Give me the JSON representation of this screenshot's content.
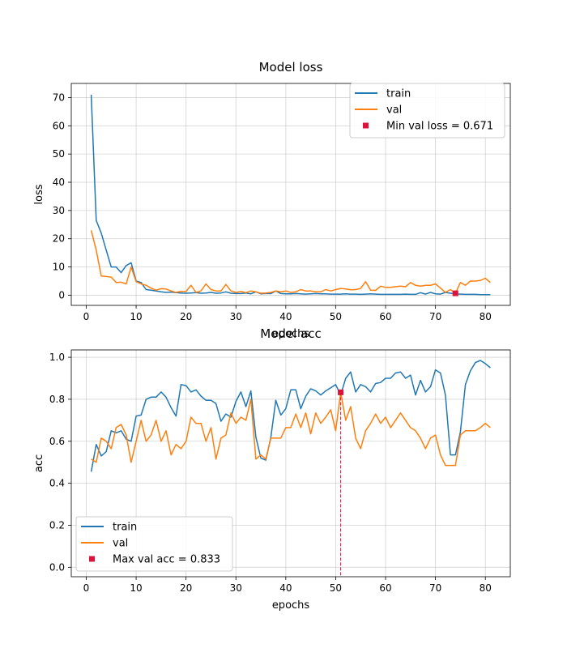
{
  "chart_data": [
    {
      "type": "line",
      "title": "Model loss",
      "xlabel": "epochs",
      "ylabel": "loss",
      "xlim": [
        -3,
        85
      ],
      "ylim": [
        -3.6,
        75
      ],
      "xticks": [
        0,
        10,
        20,
        30,
        40,
        50,
        60,
        70,
        80
      ],
      "yticks": [
        0,
        10,
        20,
        30,
        40,
        50,
        60,
        70
      ],
      "grid": true,
      "legend": "upper right",
      "series": [
        {
          "name": "train",
          "color": "#1f77b4",
          "x": [
            1,
            2,
            3,
            4,
            5,
            6,
            7,
            8,
            9,
            10,
            11,
            12,
            13,
            14,
            15,
            16,
            17,
            18,
            19,
            20,
            21,
            22,
            23,
            24,
            25,
            26,
            27,
            28,
            29,
            30,
            31,
            32,
            33,
            34,
            35,
            36,
            37,
            38,
            39,
            40,
            41,
            42,
            43,
            44,
            45,
            46,
            47,
            48,
            49,
            50,
            51,
            52,
            53,
            54,
            55,
            56,
            57,
            58,
            59,
            60,
            61,
            62,
            63,
            64,
            65,
            66,
            67,
            68,
            69,
            70,
            71,
            72,
            73,
            74,
            75,
            76,
            77,
            78,
            79,
            80,
            81
          ],
          "y": [
            71,
            26.5,
            22,
            16,
            10,
            10,
            8,
            10.5,
            11.5,
            5,
            4.5,
            2,
            1.8,
            1.5,
            1.2,
            1,
            1.1,
            0.9,
            0.8,
            0.7,
            0.8,
            0.9,
            0.7,
            0.8,
            1,
            0.7,
            0.8,
            1.2,
            0.7,
            0.6,
            0.6,
            0.8,
            0.5,
            1.2,
            0.5,
            0.6,
            0.6,
            1.5,
            0.6,
            0.5,
            0.5,
            0.6,
            0.5,
            0.4,
            0.5,
            0.6,
            0.5,
            0.5,
            0.4,
            0.4,
            0.4,
            0.5,
            0.4,
            0.4,
            0.3,
            0.4,
            0.5,
            0.4,
            0.3,
            0.3,
            0.3,
            0.3,
            0.3,
            0.4,
            0.3,
            0.3,
            0.9,
            0.4,
            1,
            0.5,
            0.4,
            1,
            0.7,
            0.5,
            0.4,
            0.3,
            0.3,
            0.3,
            0.2,
            0.2,
            0.2
          ]
        },
        {
          "name": "val",
          "color": "#ff7f0e",
          "x": [
            1,
            2,
            3,
            4,
            5,
            6,
            7,
            8,
            9,
            10,
            11,
            12,
            13,
            14,
            15,
            16,
            17,
            18,
            19,
            20,
            21,
            22,
            23,
            24,
            25,
            26,
            27,
            28,
            29,
            30,
            31,
            32,
            33,
            34,
            35,
            36,
            37,
            38,
            39,
            40,
            41,
            42,
            43,
            44,
            45,
            46,
            47,
            48,
            49,
            50,
            51,
            52,
            53,
            54,
            55,
            56,
            57,
            58,
            59,
            60,
            61,
            62,
            63,
            64,
            65,
            66,
            67,
            68,
            69,
            70,
            71,
            72,
            73,
            74,
            75,
            76,
            77,
            78,
            79,
            80,
            81
          ],
          "y": [
            23,
            16,
            6.8,
            6.6,
            6.4,
            4.5,
            4.6,
            4,
            10,
            4.8,
            4,
            3.5,
            2.5,
            1.8,
            2.3,
            2.2,
            1.5,
            1,
            1.4,
            1.3,
            3.5,
            1,
            1.5,
            4,
            2,
            1.5,
            1.5,
            3.8,
            1.5,
            1,
            1.3,
            0.9,
            1.5,
            1.2,
            0.7,
            0.8,
            1,
            1.5,
            1.2,
            1.5,
            1,
            1.2,
            2,
            1.5,
            1.5,
            1.2,
            1.2,
            2,
            1.5,
            2,
            2.4,
            2.2,
            1.9,
            2,
            2.4,
            4.8,
            1.8,
            1.7,
            3.2,
            2.8,
            2.8,
            3,
            3.2,
            3,
            4.5,
            3.5,
            3.2,
            3.5,
            3.5,
            4,
            2.5,
            1,
            2,
            0.671,
            4.5,
            3.5,
            5,
            5,
            5.2,
            6,
            4.5
          ]
        }
      ],
      "marker": {
        "label": "Min val loss = 0.671",
        "x": 74,
        "y": 0.671,
        "color": "#dc143c"
      }
    },
    {
      "type": "line",
      "title": "Model acc",
      "xlabel": "epochs",
      "ylabel": "acc",
      "xlim": [
        -3,
        85
      ],
      "ylim": [
        -0.045,
        1.035
      ],
      "xticks": [
        0,
        10,
        20,
        30,
        40,
        50,
        60,
        70,
        80
      ],
      "yticks": [
        0.0,
        0.2,
        0.4,
        0.6,
        0.8,
        1.0
      ],
      "ytick_labels": [
        "0.0",
        "0.2",
        "0.4",
        "0.6",
        "0.8",
        "1.0"
      ],
      "grid": true,
      "legend": "lower left",
      "series": [
        {
          "name": "train",
          "color": "#1f77b4",
          "x": [
            1,
            2,
            3,
            4,
            5,
            6,
            7,
            8,
            9,
            10,
            11,
            12,
            13,
            14,
            15,
            16,
            17,
            18,
            19,
            20,
            21,
            22,
            23,
            24,
            25,
            26,
            27,
            28,
            29,
            30,
            31,
            32,
            33,
            34,
            35,
            36,
            37,
            38,
            39,
            40,
            41,
            42,
            43,
            44,
            45,
            46,
            47,
            48,
            49,
            50,
            51,
            52,
            53,
            54,
            55,
            56,
            57,
            58,
            59,
            60,
            61,
            62,
            63,
            64,
            65,
            66,
            67,
            68,
            69,
            70,
            71,
            72,
            73,
            74,
            75,
            76,
            77,
            78,
            79,
            80,
            81
          ],
          "y": [
            0.455,
            0.585,
            0.53,
            0.55,
            0.65,
            0.64,
            0.65,
            0.61,
            0.6,
            0.72,
            0.725,
            0.8,
            0.81,
            0.81,
            0.835,
            0.81,
            0.76,
            0.72,
            0.87,
            0.865,
            0.835,
            0.845,
            0.815,
            0.795,
            0.795,
            0.78,
            0.695,
            0.73,
            0.715,
            0.79,
            0.835,
            0.765,
            0.84,
            0.62,
            0.52,
            0.51,
            0.62,
            0.795,
            0.725,
            0.755,
            0.845,
            0.845,
            0.755,
            0.815,
            0.85,
            0.84,
            0.82,
            0.84,
            0.855,
            0.87,
            0.82,
            0.9,
            0.93,
            0.835,
            0.87,
            0.86,
            0.835,
            0.875,
            0.88,
            0.9,
            0.9,
            0.925,
            0.93,
            0.9,
            0.915,
            0.82,
            0.89,
            0.835,
            0.86,
            0.94,
            0.925,
            0.82,
            0.535,
            0.535,
            0.645,
            0.87,
            0.935,
            0.975,
            0.985,
            0.97,
            0.95
          ]
        },
        {
          "name": "val",
          "color": "#ff7f0e",
          "x": [
            1,
            2,
            3,
            4,
            5,
            6,
            7,
            8,
            9,
            10,
            11,
            12,
            13,
            14,
            15,
            16,
            17,
            18,
            19,
            20,
            21,
            22,
            23,
            24,
            25,
            26,
            27,
            28,
            29,
            30,
            31,
            32,
            33,
            34,
            35,
            36,
            37,
            38,
            39,
            40,
            41,
            42,
            43,
            44,
            45,
            46,
            47,
            48,
            49,
            50,
            51,
            52,
            53,
            54,
            55,
            56,
            57,
            58,
            59,
            60,
            61,
            62,
            63,
            64,
            65,
            66,
            67,
            68,
            69,
            70,
            71,
            72,
            73,
            74,
            75,
            76,
            77,
            78,
            79,
            80,
            81
          ],
          "y": [
            0.515,
            0.5,
            0.615,
            0.6,
            0.565,
            0.665,
            0.68,
            0.63,
            0.5,
            0.6,
            0.7,
            0.6,
            0.63,
            0.7,
            0.6,
            0.65,
            0.535,
            0.585,
            0.565,
            0.6,
            0.715,
            0.685,
            0.685,
            0.6,
            0.665,
            0.515,
            0.615,
            0.63,
            0.735,
            0.685,
            0.715,
            0.7,
            0.8,
            0.515,
            0.535,
            0.515,
            0.615,
            0.615,
            0.615,
            0.665,
            0.665,
            0.73,
            0.665,
            0.735,
            0.635,
            0.735,
            0.685,
            0.715,
            0.75,
            0.65,
            0.833,
            0.7,
            0.765,
            0.615,
            0.565,
            0.65,
            0.685,
            0.73,
            0.685,
            0.715,
            0.665,
            0.7,
            0.735,
            0.7,
            0.665,
            0.65,
            0.615,
            0.565,
            0.615,
            0.63,
            0.535,
            0.485,
            0.485,
            0.485,
            0.63,
            0.65,
            0.65,
            0.65,
            0.665,
            0.685,
            0.665
          ]
        }
      ],
      "marker": {
        "label": "Max val acc = 0.833",
        "x": 51,
        "y": 0.833,
        "color": "#dc143c",
        "vline": true
      }
    }
  ]
}
